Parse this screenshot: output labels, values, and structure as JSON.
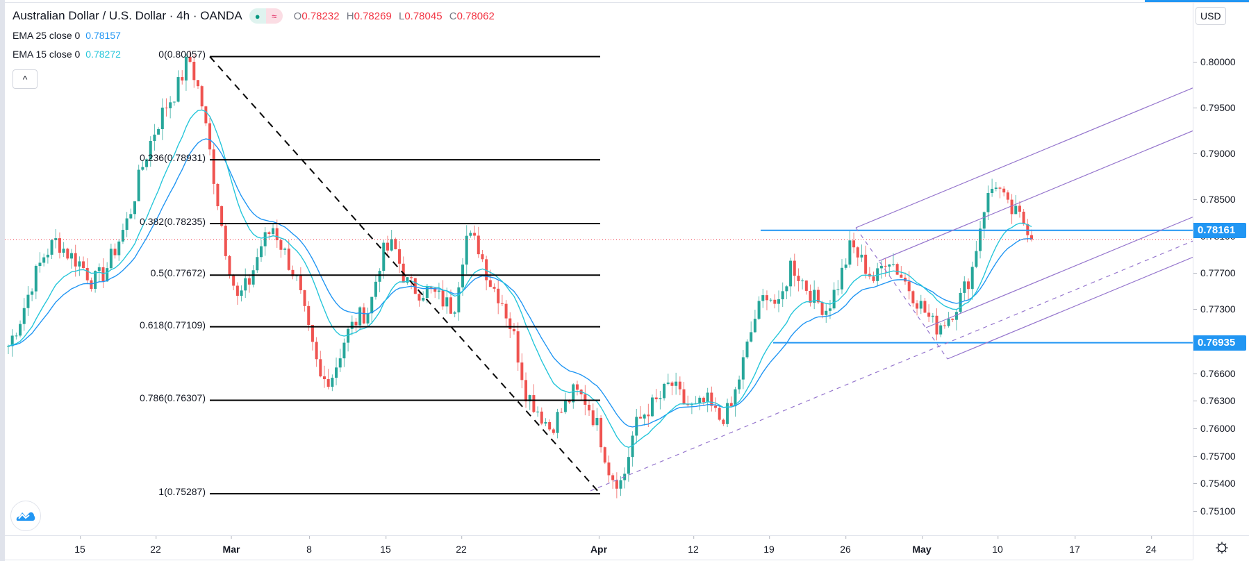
{
  "header": {
    "symbol": "Australian Dollar / U.S. Dollar · 4h · OANDA",
    "status_icons": [
      "market-open-dot-icon",
      "delayed-data-icon"
    ],
    "ohlc": [
      {
        "label": "O",
        "value": "0.78232"
      },
      {
        "label": "H",
        "value": "0.78269"
      },
      {
        "label": "L",
        "value": "0.78045"
      },
      {
        "label": "C",
        "value": "0.78062"
      }
    ]
  },
  "indicators": [
    {
      "label": "EMA 25 close 0",
      "value": "0.78157",
      "color": "#2196f3"
    },
    {
      "label": "EMA 15 close 0",
      "value": "0.78272",
      "color": "#26c6da"
    }
  ],
  "controls": {
    "collapse_icon": "^",
    "currency": "USD",
    "settings_icon": "gear-icon",
    "logo_icon": "tradingview-logo-icon"
  },
  "colors": {
    "up": "#26a69a",
    "down": "#ef5350",
    "fib": "#000000",
    "pitchfork": "#9575cd",
    "hline": "#2196f3",
    "last_price": "#f23645"
  },
  "chart_data": {
    "type": "candlestick",
    "title": "Australian Dollar / U.S. Dollar · 4h · OANDA",
    "timeframe": "4h",
    "ylim": [
      0.7485,
      0.8061
    ],
    "y_ticks": [
      "0.80000",
      "0.79500",
      "0.79000",
      "0.78500",
      "0.78100",
      "0.77700",
      "0.77300",
      "0.76600",
      "0.76300",
      "0.76000",
      "0.75700",
      "0.75400",
      "0.75100"
    ],
    "x_ticks": [
      {
        "label": "15",
        "month": false
      },
      {
        "label": "22",
        "month": false
      },
      {
        "label": "Mar",
        "month": true
      },
      {
        "label": "8",
        "month": false
      },
      {
        "label": "15",
        "month": false
      },
      {
        "label": "22",
        "month": false
      },
      {
        "label": "Apr",
        "month": true
      },
      {
        "label": "12",
        "month": false
      },
      {
        "label": "19",
        "month": false
      },
      {
        "label": "26",
        "month": false
      },
      {
        "label": "May",
        "month": true
      },
      {
        "label": "10",
        "month": false
      },
      {
        "label": "17",
        "month": false
      },
      {
        "label": "24",
        "month": false
      }
    ],
    "fibonacci": [
      {
        "level": "0",
        "price": 0.80057,
        "label": "0(0.80057)"
      },
      {
        "level": "0.236",
        "price": 0.78931,
        "label": "0.236(0.78931)"
      },
      {
        "level": "0.382",
        "price": 0.78235,
        "label": "0.382(0.78235)"
      },
      {
        "level": "0.5",
        "price": 0.77672,
        "label": "0.5(0.77672)"
      },
      {
        "level": "0.618",
        "price": 0.77109,
        "label": "0.618(0.77109)"
      },
      {
        "level": "0.786",
        "price": 0.76307,
        "label": "0.786(0.76307)"
      },
      {
        "level": "1",
        "price": 0.75287,
        "label": "1(0.75287)"
      }
    ],
    "horizontal_lines": [
      {
        "price": 0.78161,
        "label": "0.78161"
      },
      {
        "price": 0.76935,
        "label": "0.76935"
      }
    ],
    "last_price": 0.78062,
    "path_closes": [
      0.769,
      0.772,
      0.776,
      0.779,
      0.7805,
      0.779,
      0.778,
      0.776,
      0.777,
      0.78,
      0.783,
      0.788,
      0.792,
      0.795,
      0.797,
      0.8005,
      0.796,
      0.788,
      0.78,
      0.774,
      0.776,
      0.78,
      0.782,
      0.779,
      0.776,
      0.77,
      0.765,
      0.766,
      0.77,
      0.772,
      0.773,
      0.779,
      0.78,
      0.776,
      0.775,
      0.775,
      0.774,
      0.773,
      0.781,
      0.78,
      0.776,
      0.774,
      0.77,
      0.764,
      0.762,
      0.76,
      0.762,
      0.764,
      0.763,
      0.76,
      0.755,
      0.754,
      0.76,
      0.762,
      0.763,
      0.765,
      0.763,
      0.762,
      0.763,
      0.761,
      0.762,
      0.767,
      0.772,
      0.775,
      0.773,
      0.778,
      0.776,
      0.774,
      0.773,
      0.776,
      0.78,
      0.778,
      0.776,
      0.779,
      0.777,
      0.775,
      0.773,
      0.771,
      0.772,
      0.774,
      0.777,
      0.784,
      0.787,
      0.784,
      0.783,
      0.7815
    ]
  }
}
